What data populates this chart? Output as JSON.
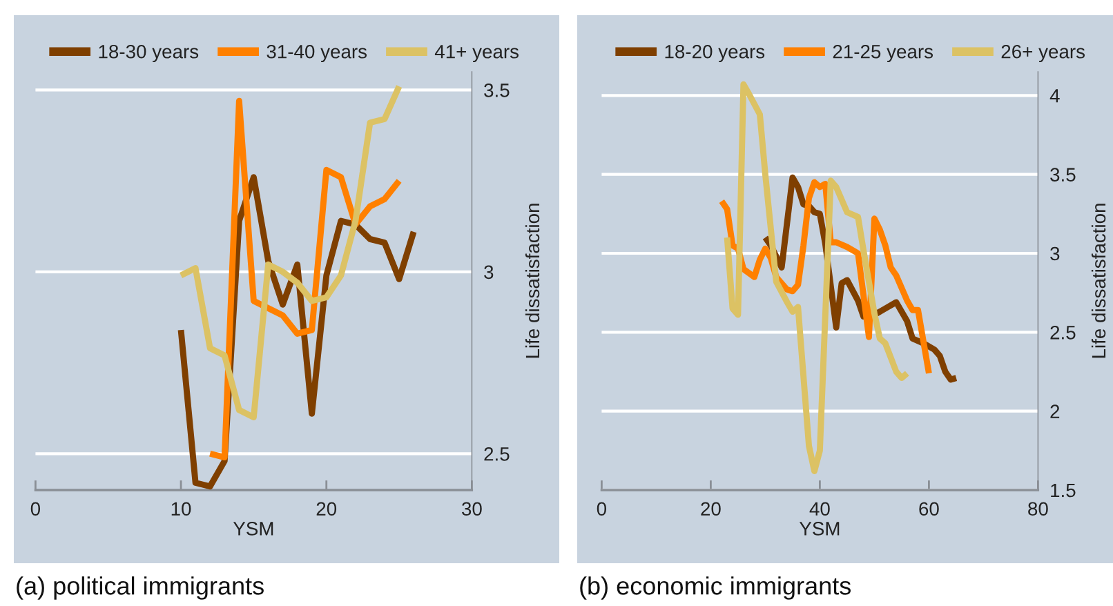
{
  "chart_data": [
    {
      "type": "line",
      "xlabel": "YSM",
      "ylabel": "Life dissatisfaction",
      "annotations": [
        "(a) political immigrants"
      ],
      "xlim": [
        0,
        30
      ],
      "xticks": [
        0,
        10,
        20,
        30
      ],
      "ylim": [
        2.4,
        3.55
      ],
      "yticks": [
        2.5,
        3,
        3.5
      ],
      "grid": "y",
      "legend": "top",
      "series": [
        {
          "name": "18-30 years",
          "color": "#7f3f00",
          "x": [
            10,
            11,
            12,
            13,
            14,
            15,
            16,
            17,
            18,
            19,
            20,
            21,
            22,
            23,
            24,
            25,
            26
          ],
          "values": [
            2.84,
            2.42,
            2.41,
            2.48,
            3.14,
            3.26,
            3.03,
            2.91,
            3.02,
            2.61,
            2.99,
            3.14,
            3.13,
            3.09,
            3.08,
            2.98,
            3.11
          ]
        },
        {
          "name": "31-40 years",
          "color": "#ff8000",
          "x": [
            12,
            13,
            14,
            15,
            16,
            17,
            18,
            19,
            20,
            21,
            22,
            23,
            24,
            25
          ],
          "values": [
            2.5,
            2.49,
            3.47,
            2.92,
            2.9,
            2.88,
            2.83,
            2.84,
            3.28,
            3.26,
            3.13,
            3.18,
            3.2,
            3.25
          ]
        },
        {
          "name": "41+ years",
          "color": "#dcc264",
          "x": [
            10,
            11,
            12,
            13,
            14,
            15,
            16,
            17,
            18,
            19,
            20,
            21,
            22,
            23,
            24,
            25
          ],
          "values": [
            2.99,
            3.01,
            2.79,
            2.77,
            2.62,
            2.6,
            3.02,
            3.0,
            2.97,
            2.92,
            2.93,
            2.99,
            3.14,
            3.41,
            3.42,
            3.51
          ]
        }
      ]
    },
    {
      "type": "line",
      "xlabel": "YSM",
      "ylabel": "Life dissatisfaction",
      "annotations": [
        "(b) economic immigrants"
      ],
      "xlim": [
        0,
        80
      ],
      "xticks": [
        0,
        20,
        40,
        60,
        80
      ],
      "ylim": [
        1.5,
        4.15
      ],
      "yticks": [
        1.5,
        2,
        2.5,
        3,
        3.5,
        4
      ],
      "grid": "y",
      "legend": "top",
      "series": [
        {
          "name": "18-20 years",
          "color": "#7f3f00",
          "x": [
            30,
            31,
            33,
            35,
            36,
            37,
            38,
            39,
            40,
            41,
            43,
            44,
            45,
            47,
            48,
            50,
            52,
            54,
            56,
            57,
            59,
            61,
            62,
            63,
            64,
            65
          ],
          "values": [
            3.1,
            3.05,
            2.91,
            3.48,
            3.42,
            3.31,
            3.3,
            3.26,
            3.25,
            3.06,
            2.53,
            2.81,
            2.83,
            2.7,
            2.6,
            2.61,
            2.65,
            2.69,
            2.57,
            2.46,
            2.43,
            2.39,
            2.35,
            2.25,
            2.2,
            2.21
          ]
        },
        {
          "name": "21-25 years",
          "color": "#ff8000",
          "x": [
            22,
            23,
            24,
            25,
            26,
            28,
            29,
            30,
            31,
            32,
            34,
            35,
            36,
            37,
            38,
            39,
            40,
            41,
            42,
            43,
            45,
            47,
            49,
            50,
            51,
            52,
            53,
            54,
            56,
            57,
            58,
            60
          ],
          "values": [
            3.33,
            3.28,
            3.05,
            3.03,
            2.9,
            2.85,
            2.96,
            3.03,
            2.97,
            2.85,
            2.77,
            2.76,
            2.8,
            3.05,
            3.35,
            3.45,
            3.42,
            3.44,
            3.07,
            3.07,
            3.04,
            3.0,
            2.47,
            3.22,
            3.15,
            3.05,
            2.91,
            2.86,
            2.7,
            2.64,
            2.64,
            2.24
          ]
        },
        {
          "name": "26+ years",
          "color": "#dcc264",
          "x": [
            23,
            24,
            25,
            26,
            27,
            29,
            30,
            32,
            34,
            35,
            36,
            38,
            39,
            40,
            42,
            43,
            45,
            47,
            48,
            49,
            50,
            51,
            52,
            53,
            54,
            55,
            56
          ],
          "values": [
            3.1,
            2.65,
            2.61,
            4.07,
            4.01,
            3.88,
            3.5,
            2.82,
            2.69,
            2.63,
            2.66,
            1.78,
            1.62,
            1.75,
            3.46,
            3.42,
            3.26,
            3.23,
            3.02,
            2.82,
            2.62,
            2.46,
            2.43,
            2.34,
            2.25,
            2.21,
            2.24
          ]
        }
      ]
    }
  ]
}
